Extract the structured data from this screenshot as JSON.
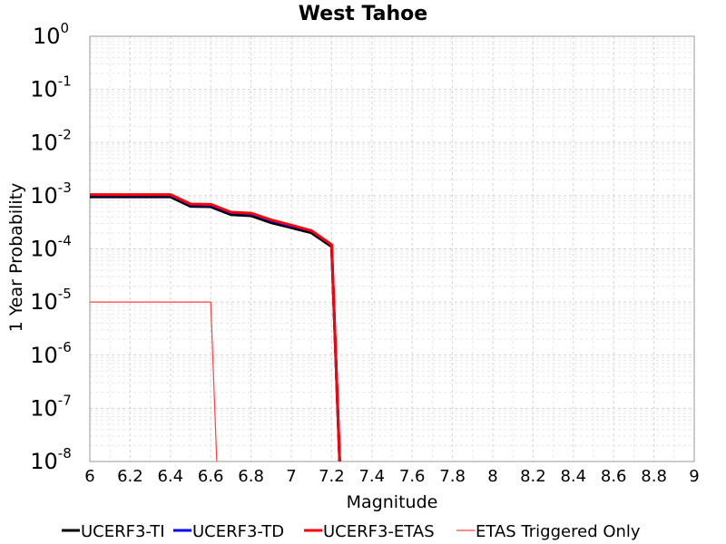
{
  "chart_data": {
    "type": "line",
    "title": "West Tahoe",
    "xlabel": "Magnitude",
    "ylabel": "1 Year Probability",
    "xlim": [
      6,
      9
    ],
    "ylim": [
      1e-08,
      1
    ],
    "yscale": "log",
    "grid": true,
    "legend_position": "bottom",
    "x_ticks": [
      "6",
      "6.2",
      "6.4",
      "6.6",
      "6.8",
      "7",
      "7.2",
      "7.4",
      "7.6",
      "7.8",
      "8",
      "8.2",
      "8.4",
      "8.6",
      "8.8",
      "9"
    ],
    "y_ticks": [
      {
        "base": "10",
        "exp": "0"
      },
      {
        "base": "10",
        "exp": "-1"
      },
      {
        "base": "10",
        "exp": "-2"
      },
      {
        "base": "10",
        "exp": "-3"
      },
      {
        "base": "10",
        "exp": "-4"
      },
      {
        "base": "10",
        "exp": "-5"
      },
      {
        "base": "10",
        "exp": "-6"
      },
      {
        "base": "10",
        "exp": "-7"
      },
      {
        "base": "10",
        "exp": "-8"
      }
    ],
    "series": [
      {
        "name": "UCERF3-TI",
        "color": "#000000",
        "width": 3,
        "x": [
          6.0,
          6.4,
          6.5,
          6.6,
          6.7,
          6.8,
          6.9,
          7.0,
          7.1,
          7.2,
          7.24
        ],
        "y": [
          0.00095,
          0.00095,
          0.00063,
          0.00062,
          0.00044,
          0.00042,
          0.00031,
          0.00025,
          0.0002,
          0.00011,
          1e-08
        ]
      },
      {
        "name": "UCERF3-TD",
        "color": "#0000ff",
        "width": 3,
        "x": [
          6.0,
          6.4,
          6.5,
          6.6,
          6.7,
          6.8,
          6.9,
          7.0,
          7.1,
          7.2,
          7.24
        ],
        "y": [
          0.00103,
          0.00103,
          0.00068,
          0.00067,
          0.00048,
          0.00046,
          0.00034,
          0.00027,
          0.00022,
          0.000118,
          1e-08
        ]
      },
      {
        "name": "UCERF3-ETAS",
        "color": "#ff0000",
        "width": 3,
        "x": [
          6.0,
          6.4,
          6.5,
          6.6,
          6.7,
          6.8,
          6.9,
          7.0,
          7.1,
          7.2,
          7.24
        ],
        "y": [
          0.00105,
          0.00105,
          0.0007,
          0.00069,
          0.00049,
          0.00047,
          0.00035,
          0.00028,
          0.00022,
          0.00012,
          1e-08
        ]
      },
      {
        "name": "ETAS Triggered Only",
        "color": "#ff4040",
        "width": 1.2,
        "x": [
          6.0,
          6.6,
          6.63
        ],
        "y": [
          1e-05,
          1e-05,
          1e-08
        ]
      }
    ]
  }
}
